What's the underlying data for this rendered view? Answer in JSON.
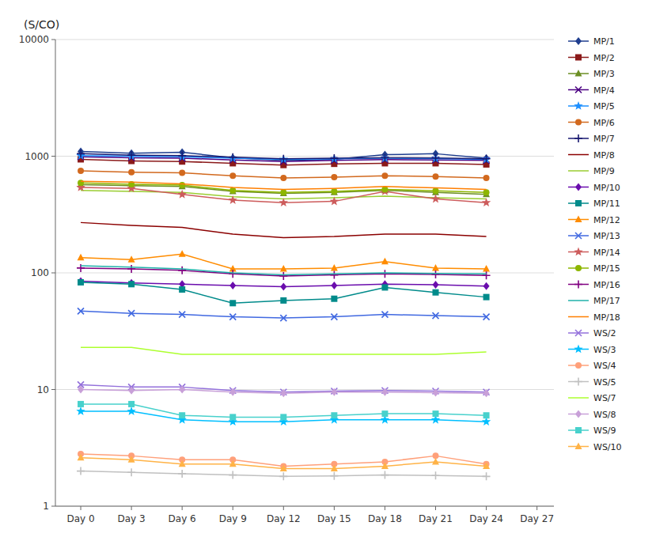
{
  "chart_data": {
    "type": "line",
    "y_label": "(S/CO)",
    "x": [
      0,
      3,
      6,
      9,
      12,
      15,
      18,
      21,
      24,
      27
    ],
    "xlim": [
      -1.5,
      28
    ],
    "xticks": [
      {
        "value": 0,
        "label": "Day 0"
      },
      {
        "value": 3,
        "label": "Day 3"
      },
      {
        "value": 6,
        "label": "Day 6"
      },
      {
        "value": 9,
        "label": "Day 9"
      },
      {
        "value": 12,
        "label": "Day 12"
      },
      {
        "value": 15,
        "label": "Day 15"
      },
      {
        "value": 18,
        "label": "Day 18"
      },
      {
        "value": 21,
        "label": "Day 21"
      },
      {
        "value": 24,
        "label": "Day 24"
      },
      {
        "value": 27,
        "label": "Day 27"
      }
    ],
    "ylim": [
      1,
      10000
    ],
    "yticks": [
      1,
      10,
      100,
      1000,
      10000
    ],
    "log": "y",
    "grid": true,
    "legend": "right",
    "series": [
      {
        "name": "MP/1",
        "color": "#1F3E8F",
        "marker": "diamond",
        "values": [
          1100,
          1060,
          1080,
          970,
          920,
          940,
          1030,
          1050,
          960,
          null
        ]
      },
      {
        "name": "MP/2",
        "color": "#8B1A1A",
        "marker": "square",
        "values": [
          940,
          910,
          900,
          870,
          840,
          860,
          870,
          870,
          850,
          null
        ]
      },
      {
        "name": "MP/3",
        "color": "#6B8E23",
        "marker": "triangle",
        "values": [
          570,
          560,
          550,
          500,
          480,
          490,
          510,
          490,
          470,
          null
        ]
      },
      {
        "name": "MP/4",
        "color": "#4B0082",
        "marker": "x",
        "values": [
          990,
          970,
          960,
          930,
          900,
          920,
          935,
          930,
          920,
          null
        ]
      },
      {
        "name": "MP/5",
        "color": "#1E90FF",
        "marker": "star",
        "values": [
          1010,
          1000,
          990,
          960,
          940,
          950,
          960,
          955,
          940,
          null
        ]
      },
      {
        "name": "MP/6",
        "color": "#D2691E",
        "marker": "circle",
        "values": [
          750,
          730,
          720,
          680,
          650,
          660,
          680,
          670,
          650,
          null
        ]
      },
      {
        "name": "MP/7",
        "color": "#191970",
        "marker": "plus",
        "values": [
          1050,
          1020,
          1010,
          980,
          950,
          960,
          970,
          965,
          950,
          null
        ]
      },
      {
        "name": "MP/8",
        "color": "#8B0000",
        "marker": "none",
        "values": [
          270,
          255,
          245,
          215,
          200,
          205,
          215,
          215,
          205,
          null
        ]
      },
      {
        "name": "MP/9",
        "color": "#9ACD32",
        "marker": "none",
        "values": [
          510,
          500,
          490,
          450,
          430,
          440,
          455,
          440,
          430,
          null
        ]
      },
      {
        "name": "MP/10",
        "color": "#6A0DAD",
        "marker": "diamond",
        "values": [
          85,
          82,
          80,
          78,
          76,
          78,
          80,
          79,
          77,
          null
        ]
      },
      {
        "name": "MP/11",
        "color": "#008B8B",
        "marker": "square",
        "values": [
          83,
          80,
          72,
          55,
          58,
          60,
          75,
          68,
          62,
          null
        ]
      },
      {
        "name": "MP/12",
        "color": "#FF8C00",
        "marker": "triangle",
        "values": [
          135,
          130,
          145,
          108,
          108,
          110,
          125,
          110,
          108,
          null
        ]
      },
      {
        "name": "MP/13",
        "color": "#4169E1",
        "marker": "x",
        "values": [
          47,
          45,
          44,
          42,
          41,
          42,
          44,
          43,
          42,
          null
        ]
      },
      {
        "name": "MP/14",
        "color": "#CD5C5C",
        "marker": "star",
        "values": [
          540,
          530,
          470,
          420,
          400,
          410,
          500,
          430,
          400,
          null
        ]
      },
      {
        "name": "MP/15",
        "color": "#8DB600",
        "marker": "circle",
        "values": [
          590,
          575,
          565,
          510,
          490,
          500,
          520,
          505,
          490,
          null
        ]
      },
      {
        "name": "MP/16",
        "color": "#800080",
        "marker": "plus",
        "values": [
          110,
          108,
          105,
          98,
          94,
          96,
          98,
          97,
          95,
          null
        ]
      },
      {
        "name": "MP/17",
        "color": "#20B2AA",
        "marker": "none",
        "values": [
          115,
          112,
          108,
          100,
          96,
          98,
          100,
          99,
          98,
          null
        ]
      },
      {
        "name": "MP/18",
        "color": "#FF7F00",
        "marker": "none",
        "values": [
          610,
          600,
          580,
          540,
          520,
          530,
          550,
          535,
          520,
          null
        ]
      },
      {
        "name": "WS/2",
        "color": "#9370DB",
        "marker": "x",
        "values": [
          11,
          10.5,
          10.5,
          9.8,
          9.5,
          9.7,
          9.8,
          9.7,
          9.5,
          null
        ]
      },
      {
        "name": "WS/3",
        "color": "#00BFFF",
        "marker": "star",
        "values": [
          6.5,
          6.5,
          5.5,
          5.3,
          5.3,
          5.5,
          5.5,
          5.5,
          5.3,
          null
        ]
      },
      {
        "name": "WS/4",
        "color": "#FFA07A",
        "marker": "circle",
        "values": [
          2.8,
          2.7,
          2.5,
          2.5,
          2.2,
          2.3,
          2.4,
          2.7,
          2.3,
          null
        ]
      },
      {
        "name": "WS/5",
        "color": "#C0C0C0",
        "marker": "plus",
        "values": [
          2.0,
          1.95,
          1.9,
          1.85,
          1.8,
          1.82,
          1.85,
          1.83,
          1.8,
          null
        ]
      },
      {
        "name": "WS/7",
        "color": "#ADFF2F",
        "marker": "none",
        "values": [
          23,
          23,
          20,
          20,
          20,
          20,
          20,
          20,
          21,
          null
        ]
      },
      {
        "name": "WS/8",
        "color": "#C8A0D8",
        "marker": "diamond",
        "values": [
          10.0,
          9.8,
          10.0,
          9.5,
          9.3,
          9.5,
          9.5,
          9.4,
          9.3,
          null
        ]
      },
      {
        "name": "WS/9",
        "color": "#48D1CC",
        "marker": "square",
        "values": [
          7.5,
          7.5,
          6.0,
          5.8,
          5.8,
          6.0,
          6.2,
          6.2,
          6.0,
          null
        ]
      },
      {
        "name": "WS/10",
        "color": "#FFB347",
        "marker": "triangle",
        "values": [
          2.6,
          2.5,
          2.3,
          2.3,
          2.1,
          2.1,
          2.2,
          2.4,
          2.2,
          null
        ]
      }
    ]
  }
}
